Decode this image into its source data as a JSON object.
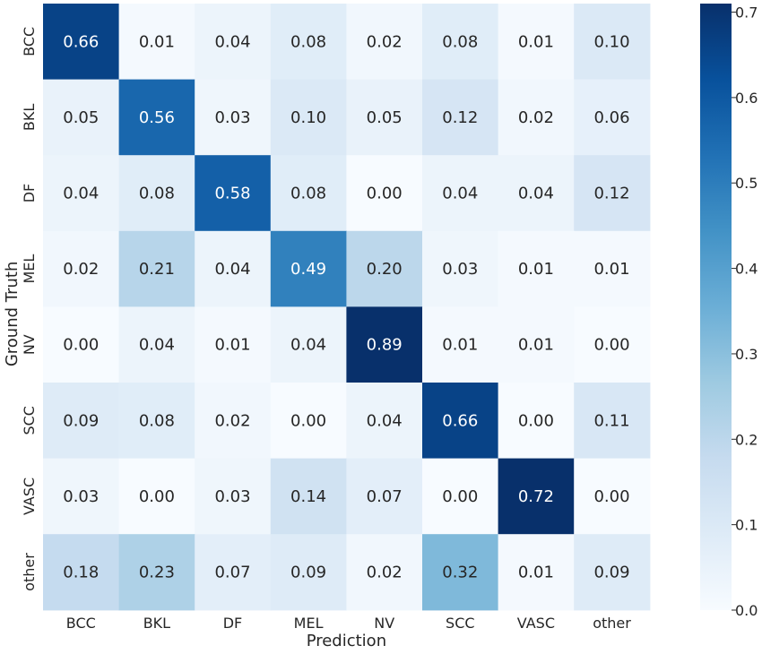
{
  "chart_data": {
    "type": "heatmap",
    "title": "",
    "xlabel": "Prediction",
    "ylabel": "Ground Truth",
    "x_categories": [
      "BCC",
      "BKL",
      "DF",
      "MEL",
      "NV",
      "SCC",
      "VASC",
      "other"
    ],
    "y_categories": [
      "BCC",
      "BKL",
      "DF",
      "MEL",
      "NV",
      "SCC",
      "VASC",
      "other"
    ],
    "values": [
      [
        0.66,
        0.01,
        0.04,
        0.08,
        0.02,
        0.08,
        0.01,
        0.1
      ],
      [
        0.05,
        0.56,
        0.03,
        0.1,
        0.05,
        0.12,
        0.02,
        0.06
      ],
      [
        0.04,
        0.08,
        0.58,
        0.08,
        0.0,
        0.04,
        0.04,
        0.12
      ],
      [
        0.02,
        0.21,
        0.04,
        0.49,
        0.2,
        0.03,
        0.01,
        0.01
      ],
      [
        0.0,
        0.04,
        0.01,
        0.04,
        0.89,
        0.01,
        0.01,
        0.0
      ],
      [
        0.09,
        0.08,
        0.02,
        0.0,
        0.04,
        0.66,
        0.0,
        0.11
      ],
      [
        0.03,
        0.0,
        0.03,
        0.14,
        0.07,
        0.0,
        0.72,
        0.0
      ],
      [
        0.18,
        0.23,
        0.07,
        0.09,
        0.02,
        0.32,
        0.01,
        0.09
      ]
    ],
    "value_format": "2-decimal",
    "colormap": "Blues",
    "color_range": [
      0.0,
      0.71
    ],
    "colorbar_ticks": [
      "0.0",
      "0.1",
      "0.2",
      "0.3",
      "0.4",
      "0.5",
      "0.6",
      "0.7"
    ],
    "grid": false,
    "legend": "colorbar-right"
  }
}
